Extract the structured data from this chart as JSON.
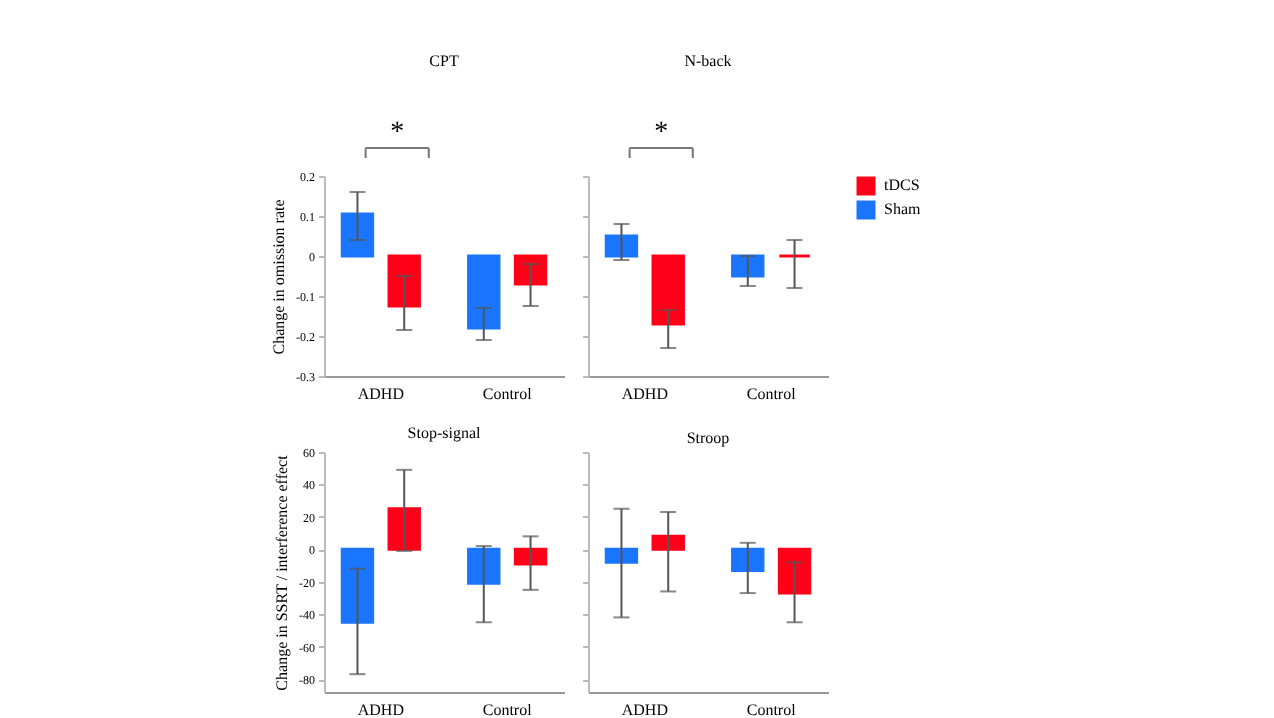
{
  "chart_data": [
    {
      "type": "bar",
      "title": "CPT",
      "ylabel": "Change in omission rate",
      "categories": [
        "ADHD",
        "Control"
      ],
      "ylim": [
        -0.3,
        0.2
      ],
      "yticks": [
        -0.3,
        -0.2,
        -0.1,
        0,
        0.1,
        0.2
      ],
      "legend": "top right",
      "annotations": [
        "*"
      ],
      "series": [
        {
          "name": "Sham",
          "color": "#1a75ff",
          "values": [
            0.105,
            -0.18
          ],
          "errors": [
            [
              0.04,
              0.16
            ],
            [
              -0.21,
              -0.13
            ]
          ]
        },
        {
          "name": "tDCS",
          "color": "#ff0019",
          "values": [
            -0.125,
            -0.07
          ],
          "errors": [
            [
              -0.185,
              -0.05
            ],
            [
              -0.125,
              -0.02
            ]
          ]
        }
      ]
    },
    {
      "type": "bar",
      "title": "N-back",
      "categories": [
        "ADHD",
        "Control"
      ],
      "ylim": [
        -0.3,
        0.2
      ],
      "yticks": [
        -0.3,
        -0.2,
        -0.1,
        0,
        0.1,
        0.2
      ],
      "tick_labels": "x",
      "annotations": [
        "*"
      ],
      "series": [
        {
          "name": "Sham",
          "color": "#1a75ff",
          "values": [
            0.05,
            -0.05
          ],
          "errors": [
            [
              -0.01,
              0.08
            ],
            [
              -0.075,
              0
            ]
          ]
        },
        {
          "name": "tDCS",
          "color": "#ff0019",
          "values": [
            -0.17,
            0
          ],
          "errors": [
            [
              -0.23,
              -0.135
            ],
            [
              -0.08,
              0.04
            ]
          ]
        }
      ]
    },
    {
      "type": "bar",
      "title": "Stop-signal",
      "ylabel": "Change in SSRT / interference effect",
      "categories": [
        "ADHD",
        "Control"
      ],
      "ylim": [
        -88,
        60
      ],
      "yticks": [
        -80,
        -60,
        -40,
        -20,
        0,
        20,
        40,
        60
      ],
      "series": [
        {
          "name": "Sham",
          "color": "#1a75ff",
          "values": [
            -45,
            -21
          ],
          "errors": [
            [
              -77,
              -12
            ],
            [
              -45,
              2
            ]
          ]
        },
        {
          "name": "tDCS",
          "color": "#ff0019",
          "values": [
            25,
            -9
          ],
          "errors": [
            [
              -1,
              49
            ],
            [
              -25,
              8
            ]
          ]
        }
      ]
    },
    {
      "type": "bar",
      "title": "Stroop",
      "categories": [
        "ADHD",
        "Control"
      ],
      "ylim": [
        -88,
        60
      ],
      "yticks": [
        -80,
        -60,
        -40,
        -20,
        0,
        20,
        40,
        60
      ],
      "tick_labels": "x",
      "series": [
        {
          "name": "Sham",
          "color": "#1a75ff",
          "values": [
            -8,
            -13
          ],
          "errors": [
            [
              -42,
              25
            ],
            [
              -27,
              4
            ]
          ]
        },
        {
          "name": "tDCS",
          "color": "#ff0019",
          "values": [
            8,
            -27
          ],
          "errors": [
            [
              -26,
              23
            ],
            [
              -45,
              -8
            ]
          ]
        }
      ]
    }
  ]
}
